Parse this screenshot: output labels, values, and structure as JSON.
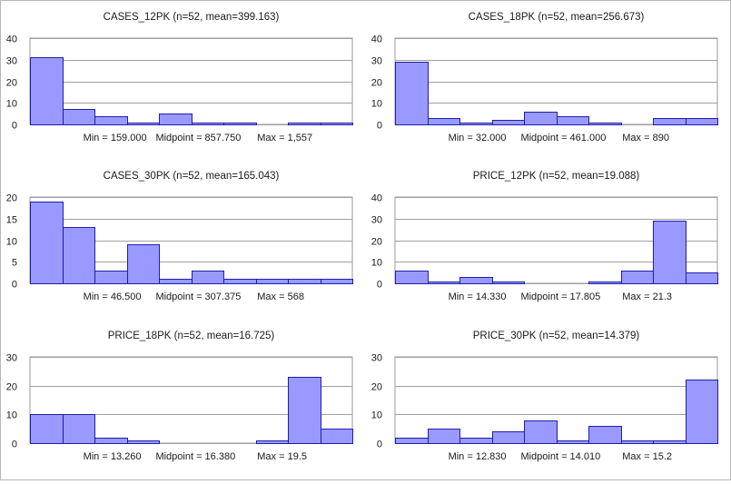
{
  "chart_data": [
    {
      "type": "bar",
      "title": "CASES_12PK  (n=52, mean=399.163)",
      "values": [
        31,
        7,
        4,
        1,
        5,
        1,
        1,
        0,
        1,
        1
      ],
      "ylim": [
        0,
        40
      ],
      "yticks": [
        0,
        10,
        20,
        30,
        40
      ],
      "stats": {
        "min": "Min = 159.000",
        "mid": "Midpoint = 857.750",
        "max": "Max = 1,557"
      }
    },
    {
      "type": "bar",
      "title": "CASES_18PK  (n=52, mean=256.673)",
      "values": [
        29,
        3,
        1,
        2,
        6,
        4,
        1,
        0,
        3,
        3
      ],
      "ylim": [
        0,
        40
      ],
      "yticks": [
        0,
        10,
        20,
        30,
        40
      ],
      "stats": {
        "min": "Min = 32.000",
        "mid": "Midpoint = 461.000",
        "max": "Max = 890"
      }
    },
    {
      "type": "bar",
      "title": "CASES_30PK  (n=52, mean=165.043)",
      "values": [
        19,
        13,
        3,
        9,
        1,
        3,
        1,
        1,
        1,
        1
      ],
      "ylim": [
        0,
        20
      ],
      "yticks": [
        0,
        5,
        10,
        15,
        20
      ],
      "stats": {
        "min": "Min = 46.500",
        "mid": "Midpoint = 307.375",
        "max": "Max = 568"
      }
    },
    {
      "type": "bar",
      "title": "PRICE_12PK  (n=52, mean=19.088)",
      "values": [
        6,
        1,
        3,
        1,
        0,
        0,
        1,
        6,
        29,
        5
      ],
      "ylim": [
        0,
        40
      ],
      "yticks": [
        0,
        10,
        20,
        30,
        40
      ],
      "stats": {
        "min": "Min = 14.330",
        "mid": "Midpoint = 17.805",
        "max": "Max = 21.3"
      }
    },
    {
      "type": "bar",
      "title": "PRICE_18PK  (n=52, mean=16.725)",
      "values": [
        10,
        10,
        2,
        1,
        0,
        0,
        0,
        1,
        23,
        5
      ],
      "ylim": [
        0,
        30
      ],
      "yticks": [
        0,
        10,
        20,
        30
      ],
      "stats": {
        "min": "Min = 13.260",
        "mid": "Midpoint = 16.380",
        "max": "Max = 19.5"
      }
    },
    {
      "type": "bar",
      "title": "PRICE_30PK  (n=52, mean=14.379)",
      "values": [
        2,
        5,
        2,
        4,
        8,
        1,
        6,
        1,
        1,
        22
      ],
      "ylim": [
        0,
        30
      ],
      "yticks": [
        0,
        10,
        20,
        30
      ],
      "stats": {
        "min": "Min = 12.830",
        "mid": "Midpoint = 14.010",
        "max": "Max = 15.2"
      }
    }
  ]
}
